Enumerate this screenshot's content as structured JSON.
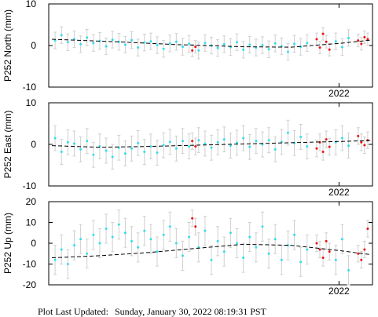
{
  "chart_data": [
    {
      "type": "scatter",
      "y_label": "P252 North (mm)",
      "xlim": [
        2020.18,
        2022.21
      ],
      "ylim": [
        -10,
        10
      ],
      "xticks": [
        2022
      ],
      "yticks": [
        -10,
        0,
        10
      ],
      "series": [
        {
          "color": "#33ddee",
          "mode": "points",
          "error": 2,
          "x": [
            2020.22,
            2020.26,
            2020.3,
            2020.34,
            2020.38,
            2020.42,
            2020.46,
            2020.5,
            2020.54,
            2020.58,
            2020.62,
            2020.66,
            2020.7,
            2020.74,
            2020.78,
            2020.82,
            2020.86,
            2020.9,
            2020.94,
            2020.98,
            2021.02,
            2021.06,
            2021.12,
            2021.16,
            2021.2,
            2021.24,
            2021.28,
            2021.32,
            2021.36,
            2021.4,
            2021.44,
            2021.48,
            2021.52,
            2021.56,
            2021.6,
            2021.64,
            2021.68,
            2021.72,
            2021.76,
            2021.8,
            2021.98,
            2022.02,
            2022.06
          ],
          "values": [
            1.2,
            2.5,
            0.8,
            1.5,
            0.3,
            1.9,
            0.6,
            1.1,
            -0.2,
            1.4,
            0.9,
            0.2,
            1.3,
            -0.5,
            0.7,
            1.0,
            0.1,
            -0.8,
            0.5,
            0.9,
            -0.3,
            0.4,
            -1.2,
            0.6,
            0.0,
            -0.6,
            0.3,
            -0.4,
            0.8,
            -1.0,
            0.2,
            -0.5,
            0.1,
            -0.9,
            0.5,
            -0.2,
            -1.5,
            0.4,
            -0.3,
            0.6,
            1.0,
            -0.4,
            1.8
          ]
        },
        {
          "color": "#ee1111",
          "mode": "points",
          "error": 1.5,
          "x": [
            2021.08,
            2021.1,
            2021.86,
            2021.88,
            2021.9,
            2021.92,
            2021.94,
            2022.12,
            2022.14,
            2022.16,
            2022.18
          ],
          "values": [
            -1.2,
            -0.3,
            1.5,
            -0.5,
            2.8,
            0.9,
            -1.0,
            1.2,
            0.4,
            2.0,
            1.5
          ]
        },
        {
          "color": "#000000",
          "mode": "line",
          "x": [
            2020.2,
            2020.6,
            2021.0,
            2021.4,
            2021.7,
            2022.0,
            2022.2
          ],
          "values": [
            1.5,
            0.9,
            0.2,
            -0.3,
            -0.4,
            0.5,
            1.3
          ]
        }
      ]
    },
    {
      "type": "scatter",
      "y_label": "P252 East (mm)",
      "xlim": [
        2020.18,
        2022.21
      ],
      "ylim": [
        -10,
        10
      ],
      "xticks": [
        2022
      ],
      "yticks": [
        -10,
        0,
        10
      ],
      "series": [
        {
          "color": "#33ddee",
          "mode": "points",
          "error": 3,
          "x": [
            2020.22,
            2020.26,
            2020.3,
            2020.34,
            2020.38,
            2020.42,
            2020.46,
            2020.5,
            2020.54,
            2020.58,
            2020.62,
            2020.66,
            2020.7,
            2020.74,
            2020.78,
            2020.82,
            2020.86,
            2020.9,
            2020.94,
            2020.98,
            2021.02,
            2021.06,
            2021.12,
            2021.16,
            2021.2,
            2021.24,
            2021.28,
            2021.32,
            2021.36,
            2021.4,
            2021.44,
            2021.48,
            2021.52,
            2021.56,
            2021.6,
            2021.64,
            2021.68,
            2021.72,
            2021.76,
            2021.8,
            2021.98,
            2022.02,
            2022.06
          ],
          "values": [
            1.5,
            -1.8,
            0.5,
            0.2,
            -1.2,
            0.8,
            -2.5,
            -0.5,
            -1.5,
            -3.0,
            -0.8,
            -2.2,
            -1.0,
            0.3,
            -1.8,
            -0.5,
            -2.0,
            -0.2,
            0.6,
            -1.0,
            0.8,
            -0.5,
            1.0,
            0.2,
            -0.8,
            0.5,
            1.2,
            -0.3,
            0.4,
            1.5,
            -0.6,
            0.8,
            0.0,
            1.0,
            -1.2,
            0.6,
            2.8,
            0.3,
            1.8,
            -0.5,
            0.5,
            1.5,
            -0.3
          ]
        },
        {
          "color": "#ee1111",
          "mode": "points",
          "error": 2,
          "x": [
            2021.08,
            2021.1,
            2021.86,
            2021.88,
            2021.9,
            2021.92,
            2021.94,
            2022.12,
            2022.14,
            2022.16,
            2022.18
          ],
          "values": [
            0.8,
            -0.5,
            -1.0,
            0.5,
            -1.8,
            1.2,
            -0.6,
            2.0,
            0.5,
            -0.2,
            1.0
          ]
        },
        {
          "color": "#000000",
          "mode": "line",
          "x": [
            2020.2,
            2020.5,
            2020.8,
            2021.1,
            2021.4,
            2021.7,
            2022.0,
            2022.2
          ],
          "values": [
            -0.3,
            -0.7,
            -0.5,
            -0.2,
            0.1,
            0.4,
            0.7,
            0.9
          ]
        }
      ]
    },
    {
      "type": "scatter",
      "y_label": "P252 Up (mm)",
      "xlim": [
        2020.18,
        2022.21
      ],
      "ylim": [
        -20,
        20
      ],
      "xticks": [
        2022
      ],
      "yticks": [
        -20,
        -10,
        0,
        10,
        20
      ],
      "series": [
        {
          "color": "#33ddee",
          "mode": "points",
          "error": 7,
          "x": [
            2020.22,
            2020.26,
            2020.3,
            2020.34,
            2020.38,
            2020.42,
            2020.46,
            2020.5,
            2020.54,
            2020.58,
            2020.62,
            2020.66,
            2020.7,
            2020.74,
            2020.78,
            2020.82,
            2020.86,
            2020.9,
            2020.94,
            2020.98,
            2021.02,
            2021.06,
            2021.12,
            2021.16,
            2021.2,
            2021.24,
            2021.28,
            2021.32,
            2021.36,
            2021.4,
            2021.44,
            2021.48,
            2021.52,
            2021.56,
            2021.6,
            2021.64,
            2021.68,
            2021.72,
            2021.76,
            2021.8,
            2021.98,
            2022.02,
            2022.06
          ],
          "values": [
            -8,
            -3,
            -10,
            -1,
            2,
            -5,
            4,
            0,
            7,
            3,
            9,
            5,
            1,
            -2,
            6,
            2,
            -4,
            4,
            8,
            0,
            -6,
            3,
            -2,
            6,
            -8,
            1,
            -4,
            5,
            0,
            -7,
            3,
            -2,
            8,
            -5,
            2,
            -8,
            -1,
            4,
            -9,
            -3,
            -8,
            2,
            -13
          ]
        },
        {
          "color": "#ee1111",
          "mode": "points",
          "error": 4,
          "x": [
            2021.08,
            2021.1,
            2021.86,
            2021.88,
            2021.9,
            2021.92,
            2021.94,
            2022.12,
            2022.14,
            2022.16,
            2022.18
          ],
          "values": [
            12,
            8,
            0,
            -3,
            -7,
            1,
            -4,
            -5,
            -8,
            -3,
            7
          ]
        },
        {
          "color": "#000000",
          "mode": "line",
          "x": [
            2020.2,
            2020.5,
            2020.8,
            2021.1,
            2021.4,
            2021.7,
            2022.0,
            2022.2
          ],
          "values": [
            -7,
            -6,
            -4.5,
            -2.5,
            -0.5,
            -1,
            -3.5,
            -5.5
          ]
        }
      ]
    }
  ],
  "footer": {
    "label": "Plot Last Updated:",
    "timestamp": "Sunday, January 30, 2022 08:19:31 PST"
  }
}
